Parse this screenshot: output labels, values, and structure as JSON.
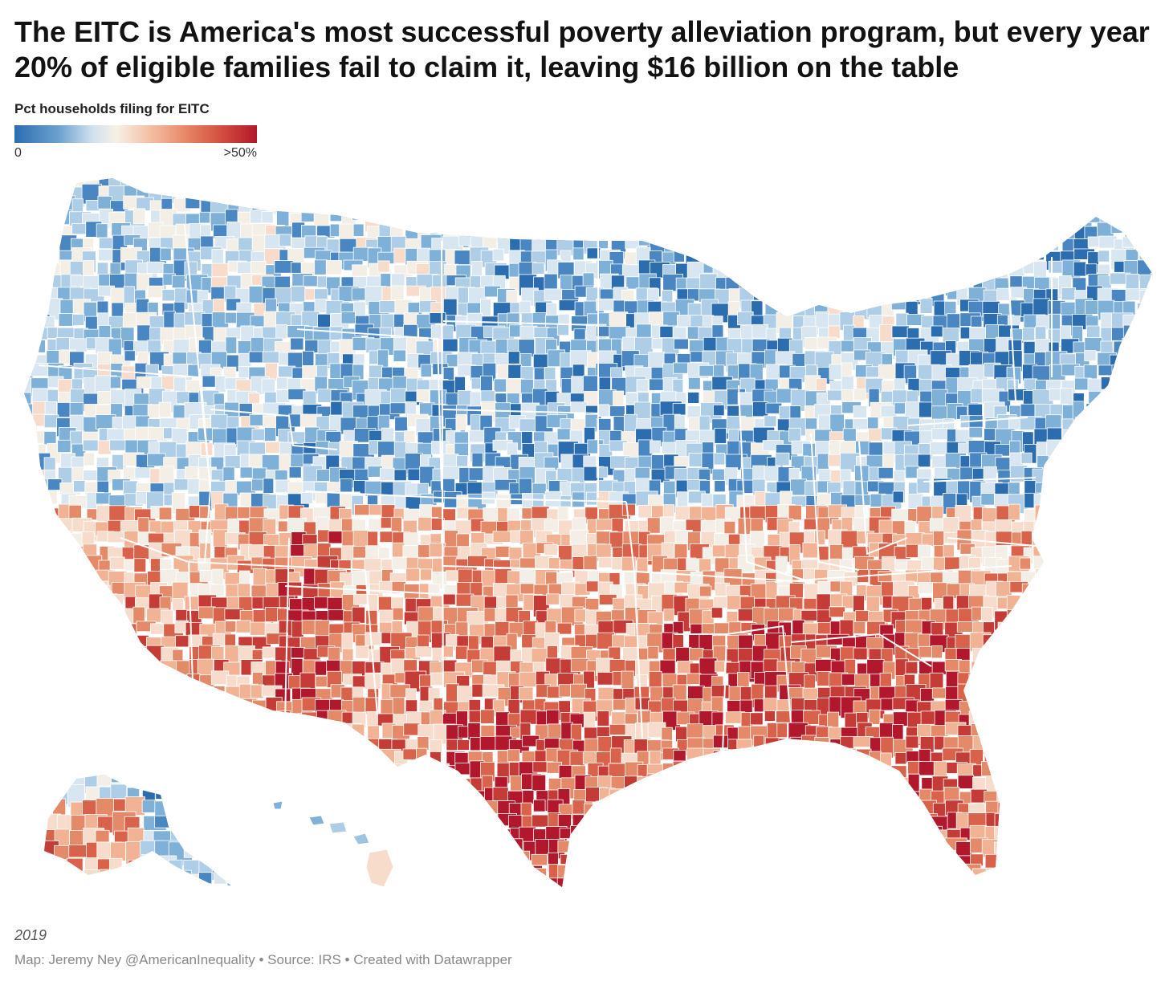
{
  "title": "The EITC is America's most successful poverty alleviation program, but every year 20% of eligible families fail to claim it, leaving $16 billion on the table",
  "legend": {
    "title": "Pct households filing for EITC",
    "min_label": "0",
    "max_label": ">50%"
  },
  "year": "2019",
  "credit": "Map: Jeremy Ney @AmericanInequality • Source: IRS • Created with Datawrapper",
  "colors": {
    "low": "#2c6db0",
    "mid": "#f7f1e6",
    "high": "#b2182b"
  }
}
